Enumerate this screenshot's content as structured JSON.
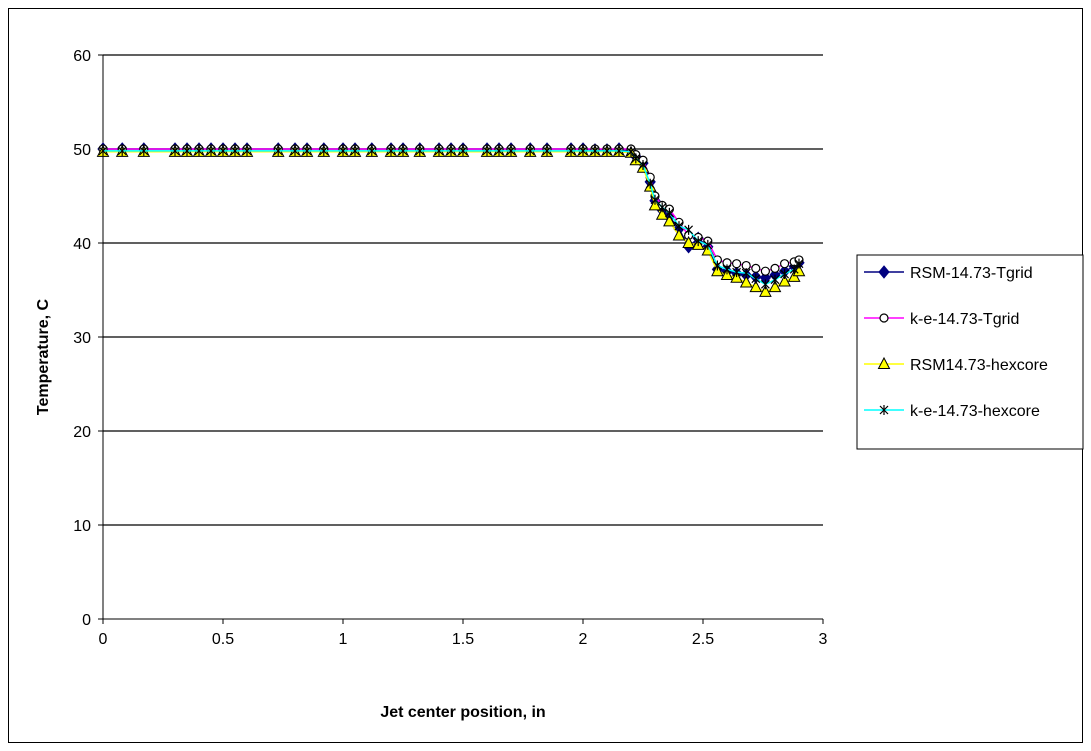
{
  "chart_data": {
    "type": "line",
    "title": "",
    "xlabel": "Jet center position, in",
    "ylabel": "Temperature, C",
    "xlim": [
      0,
      3
    ],
    "ylim": [
      0,
      60
    ],
    "x_ticks": [
      "0",
      "0.5",
      "1",
      "1.5",
      "2",
      "2.5",
      "3"
    ],
    "y_ticks": [
      "0",
      "10",
      "20",
      "30",
      "40",
      "50",
      "60"
    ],
    "grid": "horizontal major gridlines",
    "legend_position": "right",
    "series": [
      {
        "name": "RSM-14.73-Tgrid",
        "line_color": "#000080",
        "marker": "diamond",
        "marker_fill": "#000080",
        "x": [
          0.0,
          0.08,
          0.17,
          0.3,
          0.35,
          0.4,
          0.45,
          0.5,
          0.55,
          0.6,
          0.73,
          0.8,
          0.85,
          0.92,
          1.0,
          1.05,
          1.12,
          1.2,
          1.25,
          1.32,
          1.4,
          1.45,
          1.5,
          1.6,
          1.65,
          1.7,
          1.78,
          1.85,
          1.95,
          2.0,
          2.05,
          2.1,
          2.15,
          2.2,
          2.22,
          2.25,
          2.28,
          2.3,
          2.33,
          2.36,
          2.4,
          2.44,
          2.48,
          2.52,
          2.56,
          2.6,
          2.64,
          2.68,
          2.72,
          2.76,
          2.8,
          2.84,
          2.88,
          2.9
        ],
        "y": [
          50,
          50,
          50,
          50,
          50,
          50,
          50,
          50,
          50,
          50,
          50,
          50,
          50,
          50,
          50,
          50,
          50,
          50,
          50,
          50,
          50,
          50,
          50,
          50,
          50,
          50,
          50,
          50,
          50,
          50,
          49.9,
          49.9,
          50,
          49.8,
          49.2,
          48.5,
          46.5,
          44.5,
          43.5,
          42.8,
          41.5,
          39.6,
          40.5,
          39.6,
          37.2,
          37.0,
          36.8,
          36.6,
          36.4,
          36.3,
          36.6,
          37.0,
          37.5,
          37.9
        ]
      },
      {
        "name": "k-e-14.73-Tgrid",
        "line_color": "#ff00ff",
        "marker": "circle",
        "marker_fill": "#ffffff",
        "x": [
          0.0,
          0.08,
          0.17,
          0.3,
          0.35,
          0.4,
          0.45,
          0.5,
          0.55,
          0.6,
          0.73,
          0.8,
          0.85,
          0.92,
          1.0,
          1.05,
          1.12,
          1.2,
          1.25,
          1.32,
          1.4,
          1.45,
          1.5,
          1.6,
          1.65,
          1.7,
          1.78,
          1.85,
          1.95,
          2.0,
          2.05,
          2.1,
          2.15,
          2.2,
          2.22,
          2.25,
          2.28,
          2.3,
          2.33,
          2.36,
          2.4,
          2.44,
          2.48,
          2.52,
          2.56,
          2.6,
          2.64,
          2.68,
          2.72,
          2.76,
          2.8,
          2.84,
          2.88,
          2.9
        ],
        "y": [
          50,
          50,
          50,
          50,
          50,
          50,
          50,
          50,
          50,
          50,
          50,
          50,
          50,
          50,
          50,
          50,
          50,
          50,
          50,
          50,
          50,
          50,
          50,
          50,
          50,
          50,
          50,
          50,
          50,
          50,
          50,
          50,
          50,
          50,
          49.4,
          48.8,
          47.0,
          45.0,
          44.0,
          43.6,
          42.2,
          40.8,
          40.6,
          40.2,
          38.2,
          37.9,
          37.8,
          37.6,
          37.3,
          37.0,
          37.3,
          37.8,
          38.0,
          38.2
        ]
      },
      {
        "name": "RSM14.73-hexcore",
        "line_color": "#ffff00",
        "marker": "triangle",
        "marker_fill": "#ffff00",
        "x": [
          0.0,
          0.08,
          0.17,
          0.3,
          0.35,
          0.4,
          0.45,
          0.5,
          0.55,
          0.6,
          0.73,
          0.8,
          0.85,
          0.92,
          1.0,
          1.05,
          1.12,
          1.2,
          1.25,
          1.32,
          1.4,
          1.45,
          1.5,
          1.6,
          1.65,
          1.7,
          1.78,
          1.85,
          1.95,
          2.0,
          2.05,
          2.1,
          2.15,
          2.2,
          2.22,
          2.25,
          2.28,
          2.3,
          2.33,
          2.36,
          2.4,
          2.44,
          2.48,
          2.52,
          2.56,
          2.6,
          2.64,
          2.68,
          2.72,
          2.76,
          2.8,
          2.84,
          2.88,
          2.9
        ],
        "y": [
          49.7,
          49.7,
          49.7,
          49.7,
          49.7,
          49.7,
          49.7,
          49.7,
          49.7,
          49.7,
          49.7,
          49.7,
          49.7,
          49.7,
          49.7,
          49.7,
          49.7,
          49.7,
          49.7,
          49.7,
          49.7,
          49.7,
          49.7,
          49.7,
          49.7,
          49.7,
          49.7,
          49.7,
          49.7,
          49.7,
          49.7,
          49.7,
          49.7,
          49.6,
          48.8,
          48.0,
          46.0,
          44.0,
          43.0,
          42.3,
          40.8,
          40.0,
          39.8,
          39.2,
          37.0,
          36.6,
          36.3,
          35.8,
          35.3,
          34.8,
          35.3,
          35.9,
          36.4,
          37.0
        ]
      },
      {
        "name": "k-e-14.73-hexcore",
        "line_color": "#00ffff",
        "marker": "asterisk",
        "marker_fill": "#000000",
        "x": [
          0.0,
          0.08,
          0.17,
          0.3,
          0.35,
          0.4,
          0.45,
          0.5,
          0.55,
          0.6,
          0.73,
          0.8,
          0.85,
          0.92,
          1.0,
          1.05,
          1.12,
          1.2,
          1.25,
          1.32,
          1.4,
          1.45,
          1.5,
          1.6,
          1.65,
          1.7,
          1.78,
          1.85,
          1.95,
          2.0,
          2.05,
          2.1,
          2.15,
          2.2,
          2.22,
          2.25,
          2.28,
          2.3,
          2.33,
          2.36,
          2.4,
          2.44,
          2.48,
          2.52,
          2.56,
          2.6,
          2.64,
          2.68,
          2.72,
          2.76,
          2.8,
          2.84,
          2.88,
          2.9
        ],
        "y": [
          49.8,
          49.8,
          49.8,
          49.8,
          49.8,
          49.8,
          49.8,
          49.8,
          49.8,
          49.8,
          49.8,
          49.8,
          49.8,
          49.8,
          49.8,
          49.8,
          49.8,
          49.8,
          49.8,
          49.8,
          49.8,
          49.8,
          49.8,
          49.8,
          49.8,
          49.8,
          49.8,
          49.8,
          49.8,
          49.8,
          49.8,
          49.8,
          49.8,
          49.7,
          49.0,
          48.3,
          46.3,
          44.6,
          43.8,
          43.2,
          41.8,
          41.4,
          40.2,
          39.8,
          37.6,
          37.2,
          36.9,
          36.8,
          36.2,
          35.6,
          36.1,
          36.7,
          37.2,
          37.8
        ]
      }
    ]
  }
}
